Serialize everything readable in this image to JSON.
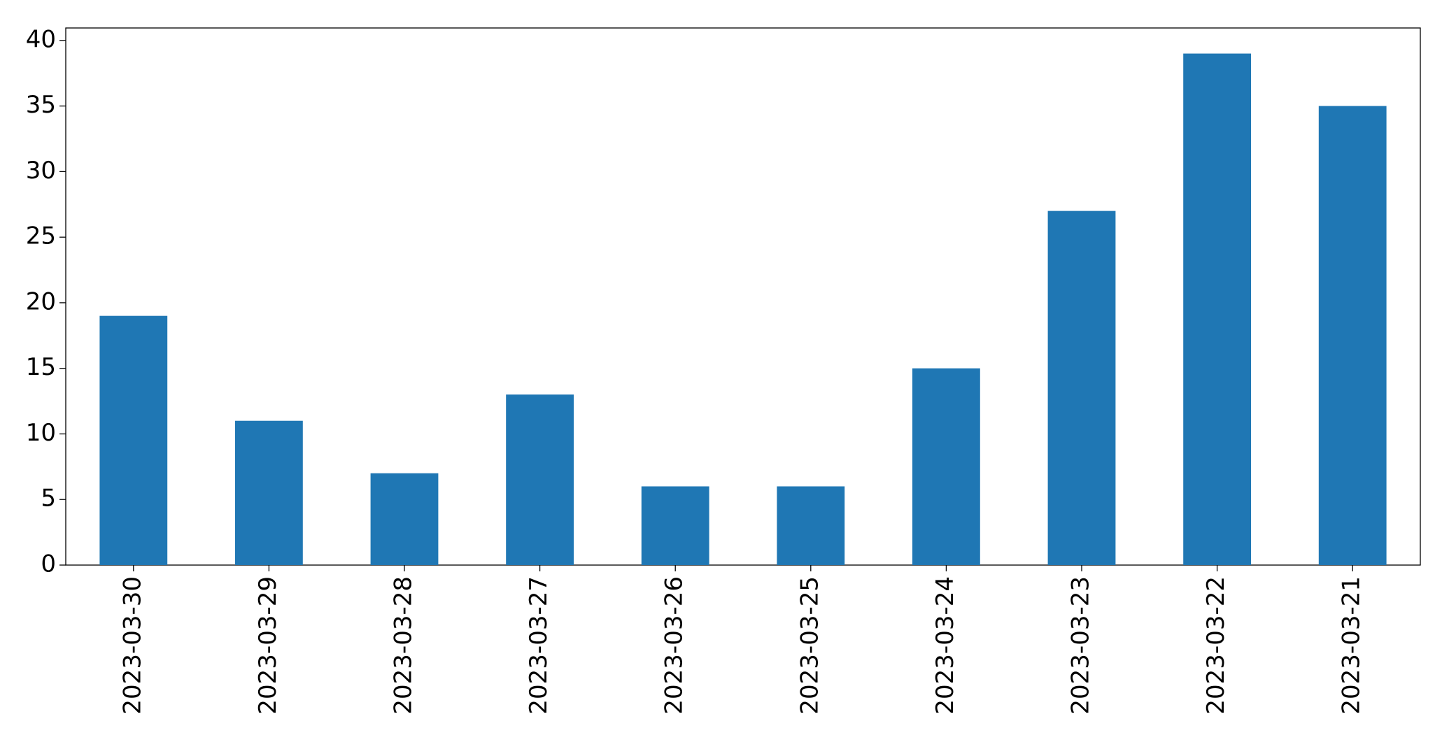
{
  "chart_data": {
    "type": "bar",
    "categories": [
      "2023-03-30",
      "2023-03-29",
      "2023-03-28",
      "2023-03-27",
      "2023-03-26",
      "2023-03-25",
      "2023-03-24",
      "2023-03-23",
      "2023-03-22",
      "2023-03-21"
    ],
    "values": [
      19,
      11,
      7,
      13,
      6,
      6,
      15,
      27,
      39,
      35
    ],
    "color": "#1f77b4",
    "ylim": [
      0,
      40.95
    ],
    "yticks": [
      0,
      5,
      10,
      15,
      20,
      25,
      30,
      35,
      40
    ],
    "grid": false
  }
}
